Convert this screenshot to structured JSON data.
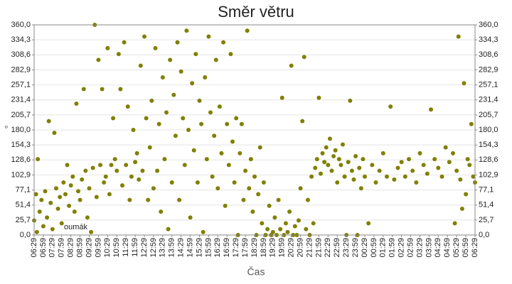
{
  "chart_data": {
    "type": "scatter",
    "title": "Směr větru",
    "x_label": "Čas",
    "y_label": "°",
    "xlim": [
      0,
      24
    ],
    "ylim": [
      0,
      360
    ],
    "grid": true,
    "xticks": [
      {
        "value": 0,
        "label": "06:29"
      },
      {
        "value": 0.5,
        "label": "06:59"
      },
      {
        "value": 1,
        "label": "07:29"
      },
      {
        "value": 1.5,
        "label": "07:59"
      },
      {
        "value": 2,
        "label": "08:29"
      },
      {
        "value": 2.5,
        "label": "08:59"
      },
      {
        "value": 3,
        "label": "09:29"
      },
      {
        "value": 3.5,
        "label": "09:59"
      },
      {
        "value": 4,
        "label": "10:29"
      },
      {
        "value": 4.5,
        "label": "10:59"
      },
      {
        "value": 5,
        "label": "11:29"
      },
      {
        "value": 5.5,
        "label": "11:59"
      },
      {
        "value": 6,
        "label": "12:29"
      },
      {
        "value": 6.5,
        "label": "12:59"
      },
      {
        "value": 7,
        "label": "13:29"
      },
      {
        "value": 7.5,
        "label": "13:59"
      },
      {
        "value": 8,
        "label": "14:29"
      },
      {
        "value": 8.5,
        "label": "14:59"
      },
      {
        "value": 9,
        "label": "15:29"
      },
      {
        "value": 9.5,
        "label": "15:59"
      },
      {
        "value": 10,
        "label": "16:29"
      },
      {
        "value": 10.5,
        "label": "16:59"
      },
      {
        "value": 11,
        "label": "17:29"
      },
      {
        "value": 11.5,
        "label": "17:59"
      },
      {
        "value": 12,
        "label": "18:29"
      },
      {
        "value": 12.5,
        "label": "18:59"
      },
      {
        "value": 13,
        "label": "19:29"
      },
      {
        "value": 13.5,
        "label": "19:59"
      },
      {
        "value": 14,
        "label": "20:29"
      },
      {
        "value": 14.5,
        "label": "20:59"
      },
      {
        "value": 15,
        "label": "21:29"
      },
      {
        "value": 15.5,
        "label": "21:59"
      },
      {
        "value": 16,
        "label": "22:29"
      },
      {
        "value": 16.5,
        "label": "22:59"
      },
      {
        "value": 17,
        "label": "23:29"
      },
      {
        "value": 17.5,
        "label": "23:59"
      },
      {
        "value": 18,
        "label": "00:29"
      },
      {
        "value": 18.5,
        "label": "00:59"
      },
      {
        "value": 19,
        "label": "01:29"
      },
      {
        "value": 19.5,
        "label": "01:59"
      },
      {
        "value": 20,
        "label": "02:29"
      },
      {
        "value": 20.5,
        "label": "02:59"
      },
      {
        "value": 21,
        "label": "03:29"
      },
      {
        "value": 21.5,
        "label": "03:59"
      },
      {
        "value": 22,
        "label": "04:29"
      },
      {
        "value": 22.5,
        "label": "04:59"
      },
      {
        "value": 23,
        "label": "05:29"
      },
      {
        "value": 23.5,
        "label": "05:59"
      },
      {
        "value": 24,
        "label": "06:29"
      }
    ],
    "yticks": [
      {
        "value": 0,
        "label": "0,0"
      },
      {
        "value": 25.7,
        "label": "25,7"
      },
      {
        "value": 51.4,
        "label": "51,4"
      },
      {
        "value": 77.1,
        "label": "77,1"
      },
      {
        "value": 102.9,
        "label": "102,9"
      },
      {
        "value": 128.6,
        "label": "128,6"
      },
      {
        "value": 154.3,
        "label": "154,3"
      },
      {
        "value": 180,
        "label": "180,0"
      },
      {
        "value": 205.7,
        "label": "205,7"
      },
      {
        "value": 231.4,
        "label": "231,4"
      },
      {
        "value": 257.1,
        "label": "257,1"
      },
      {
        "value": 282.9,
        "label": "282,9"
      },
      {
        "value": 308.6,
        "label": "308,6"
      },
      {
        "value": 334.3,
        "label": "334,3"
      },
      {
        "value": 360,
        "label": "360,0"
      }
    ],
    "series": [
      {
        "name": "oumák",
        "color": "#808000",
        "x": [
          0,
          0.1,
          0.15,
          0.2,
          0.3,
          0.4,
          0.5,
          0.6,
          0.7,
          0.8,
          0.9,
          1,
          1.1,
          1.2,
          1.3,
          1.4,
          1.5,
          1.6,
          1.7,
          1.8,
          1.9,
          2,
          2.1,
          2.2,
          2.3,
          2.4,
          2.5,
          2.6,
          2.7,
          2.8,
          2.9,
          3,
          3.1,
          3.2,
          3.3,
          3.4,
          3.5,
          3.6,
          3.7,
          3.8,
          3.9,
          4,
          4.1,
          4.2,
          4.3,
          4.4,
          4.5,
          4.6,
          4.7,
          4.8,
          4.9,
          5,
          5.1,
          5.2,
          5.3,
          5.4,
          5.5,
          5.6,
          5.7,
          5.8,
          5.9,
          6,
          6.1,
          6.2,
          6.3,
          6.4,
          6.5,
          6.6,
          6.7,
          6.8,
          6.9,
          7,
          7.1,
          7.2,
          7.3,
          7.4,
          7.5,
          7.6,
          7.7,
          7.8,
          7.9,
          8,
          8.1,
          8.2,
          8.3,
          8.4,
          8.5,
          8.6,
          8.7,
          8.8,
          8.9,
          9,
          9.1,
          9.2,
          9.3,
          9.4,
          9.5,
          9.6,
          9.7,
          9.8,
          9.9,
          10,
          10.1,
          10.2,
          10.3,
          10.4,
          10.5,
          10.6,
          10.7,
          10.8,
          10.9,
          11,
          11.1,
          11.2,
          11.3,
          11.4,
          11.5,
          11.6,
          11.7,
          11.8,
          11.9,
          12,
          12.1,
          12.2,
          12.3,
          12.4,
          12.5,
          12.6,
          12.7,
          12.8,
          12.9,
          13,
          13.1,
          13.2,
          13.3,
          13.4,
          13.5,
          13.6,
          13.7,
          13.8,
          13.9,
          14,
          14.1,
          14.2,
          14.3,
          14.4,
          14.5,
          14.6,
          14.7,
          14.8,
          14.9,
          15,
          15.1,
          15.2,
          15.3,
          15.4,
          15.5,
          15.6,
          15.7,
          15.8,
          15.9,
          16,
          16.1,
          16.2,
          16.3,
          16.4,
          16.5,
          16.6,
          16.7,
          16.8,
          16.9,
          17,
          17.1,
          17.2,
          17.3,
          17.4,
          17.5,
          17.6,
          17.7,
          17.8,
          17.9,
          18,
          18.2,
          18.4,
          18.6,
          18.8,
          19,
          19.2,
          19.4,
          19.6,
          19.8,
          20,
          20.2,
          20.4,
          20.6,
          20.8,
          21,
          21.2,
          21.4,
          21.6,
          21.8,
          22,
          22.2,
          22.4,
          22.6,
          22.8,
          22.9,
          23,
          23.1,
          23.2,
          23.3,
          23.4,
          23.5,
          23.6,
          23.7,
          23.8,
          23.9,
          24
        ],
        "values": [
          25,
          70,
          5,
          130,
          40,
          60,
          15,
          75,
          30,
          195,
          55,
          10,
          175,
          80,
          45,
          65,
          20,
          90,
          70,
          120,
          50,
          85,
          100,
          40,
          225,
          75,
          60,
          95,
          250,
          110,
          30,
          80,
          5,
          115,
          360,
          65,
          300,
          120,
          250,
          90,
          100,
          320,
          70,
          120,
          200,
          130,
          110,
          310,
          250,
          85,
          330,
          120,
          220,
          60,
          100,
          180,
          125,
          140,
          95,
          290,
          110,
          340,
          200,
          60,
          150,
          230,
          80,
          320,
          110,
          190,
          40,
          270,
          130,
          210,
          10,
          300,
          90,
          240,
          170,
          330,
          60,
          280,
          200,
          120,
          350,
          180,
          30,
          260,
          145,
          310,
          90,
          230,
          190,
          5,
          270,
          130,
          340,
          210,
          100,
          170,
          300,
          80,
          220,
          140,
          330,
          50,
          190,
          120,
          310,
          160,
          90,
          200,
          0,
          140,
          190,
          60,
          110,
          350,
          80,
          130,
          40,
          100,
          0,
          70,
          150,
          20,
          90,
          0,
          10,
          50,
          0,
          5,
          30,
          0,
          60,
          10,
          235,
          0,
          20,
          5,
          40,
          290,
          0,
          15,
          0,
          25,
          80,
          195,
          305,
          10,
          60,
          0,
          100,
          20,
          115,
          130,
          235,
          105,
          140,
          125,
          150,
          120,
          165,
          110,
          135,
          145,
          90,
          130,
          120,
          155,
          100,
          0,
          125,
          230,
          110,
          95,
          135,
          0,
          115,
          80,
          130,
          100,
          20,
          120,
          90,
          110,
          140,
          100,
          220,
          95,
          115,
          125,
          100,
          130,
          110,
          90,
          140,
          120,
          105,
          215,
          130,
          115,
          100,
          150,
          125,
          140,
          20,
          110,
          340,
          95,
          45,
          260,
          70,
          130,
          120,
          190,
          100,
          90
        ]
      }
    ]
  }
}
